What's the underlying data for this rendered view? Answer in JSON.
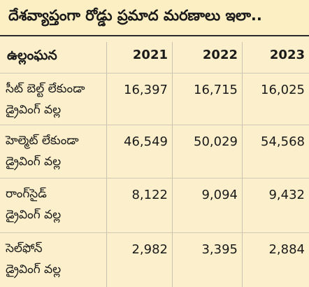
{
  "title": "దేశవ్యాప్తంగా రోడ్డు ప్రమాద మరణాలు ఇలా..",
  "header": {
    "label": "ఉల్లంఘన",
    "years": [
      "2021",
      "2022",
      "2023"
    ]
  },
  "rows": [
    {
      "label1": "సీట్ బెల్ట్ లేకుండా",
      "label2": "డ్రైవింగ్ వల్ల",
      "values": [
        "16,397",
        "16,715",
        "16,025"
      ]
    },
    {
      "label1": "హెల్మెట్ లేకుండా",
      "label2": "డ్రైవింగ్ వల్ల",
      "values": [
        "46,549",
        "50,029",
        "54,568"
      ]
    },
    {
      "label1": "రాంగ్‌సైడ్",
      "label2": "డ్రైవింగ్ వల్ల",
      "values": [
        "8,122",
        "9,094",
        "9,432"
      ]
    },
    {
      "label1": "సెల్‌ఫోన్",
      "label2": "డ్రైవింగ్ వల్ల",
      "values": [
        "2,982",
        "3,395",
        "2,884"
      ]
    }
  ]
}
